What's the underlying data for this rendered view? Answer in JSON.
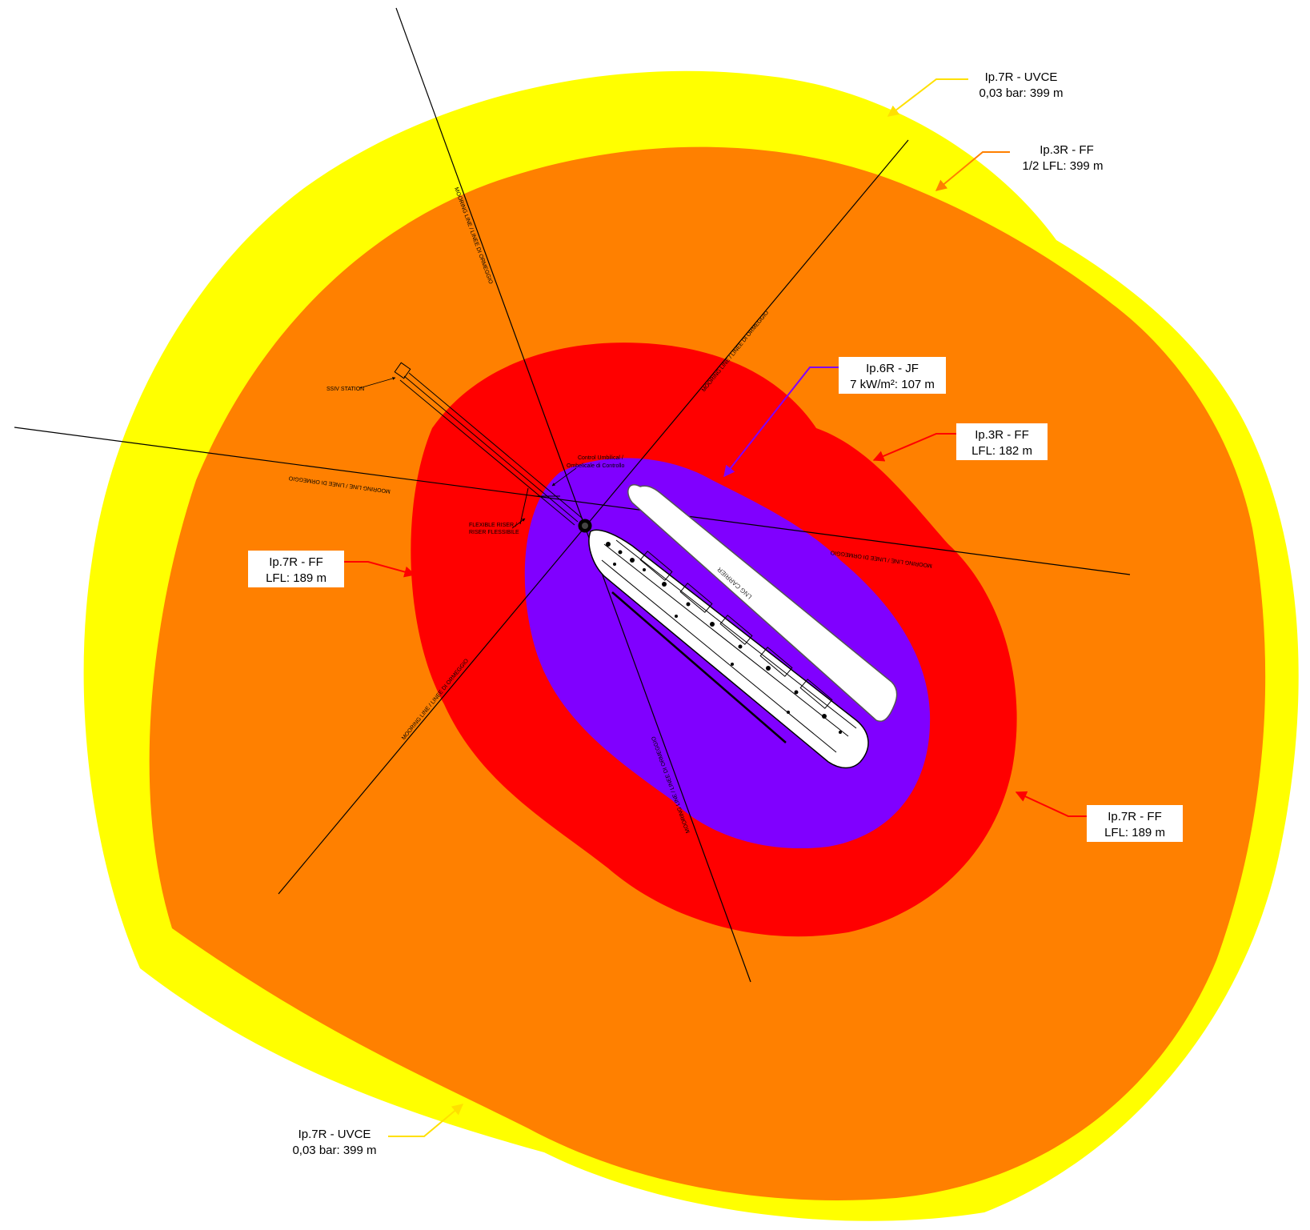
{
  "colors": {
    "uvce": "#FFFF00",
    "ff_half_lfl": "#FF8000",
    "ff_lfl": "#FF0000",
    "jet_fire": "#8000FF",
    "ship_hull": "#FFFFFF",
    "lng_carrier": "#FFFFFF",
    "line": "#000000"
  },
  "labels": {
    "uvce_top": {
      "line1": "Ip.7R - UVCE",
      "line2": "0,03 bar: 399 m"
    },
    "ff3r_half": {
      "line1": "Ip.3R - FF",
      "line2": "1/2 LFL: 399 m"
    },
    "jf6r": {
      "line1": "Ip.6R - JF",
      "line2": "7 kW/m²: 107 m"
    },
    "ff3r_lfl": {
      "line1": "Ip.3R - FF",
      "line2": "LFL: 182 m"
    },
    "ff7r_left": {
      "line1": "Ip.7R - FF",
      "line2": "LFL: 189 m"
    },
    "ff7r_right": {
      "line1": "Ip.7R - FF",
      "line2": "LFL: 189 m"
    },
    "uvce_bottom": {
      "line1": "Ip.7R - UVCE",
      "line2": "0,03 bar: 399 m"
    }
  },
  "annotations": {
    "ssiv_station": "SSIV STATION",
    "control_umbilical_1": "Control Umbilical /",
    "control_umbilical_2": "Ombelicale di Controllo",
    "flexible_riser_1": "FLEXIBLE RISER /",
    "flexible_riser_2": "RISER FLESSIBILE",
    "mooring_line": "MOORING LINE / LINEE DI ORMEGGIO",
    "lng_carrier": "LNG CARRIER"
  }
}
